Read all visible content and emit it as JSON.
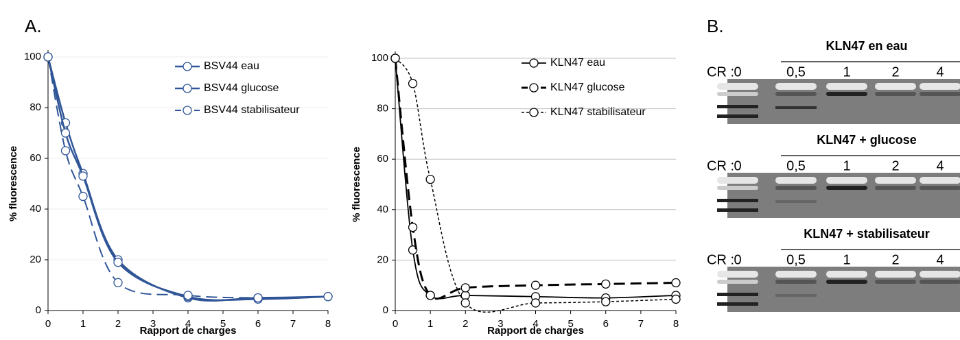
{
  "panels": {
    "a": "A.",
    "b": "B."
  },
  "chart_data": [
    {
      "type": "line",
      "x_label": "Rapport de charges",
      "y_label": "% fluorescence",
      "x": [
        0,
        0.5,
        1,
        2,
        4,
        6,
        8
      ],
      "xlim": [
        0,
        8
      ],
      "xticks": [
        0,
        1,
        2,
        3,
        4,
        5,
        6,
        7,
        8
      ],
      "ylim": [
        0,
        100
      ],
      "yticks": [
        0,
        20,
        40,
        60,
        80,
        100
      ],
      "grid": true,
      "grid_color": "#eeeeee",
      "legend": "top-right",
      "series": [
        {
          "name": "BSV44 eau",
          "color": "#2f5597",
          "dash": "solid",
          "width": 2.5,
          "values": [
            100,
            74,
            54,
            20,
            5,
            5,
            5.5
          ]
        },
        {
          "name": "BSV44 glucose",
          "color": "#2f5597",
          "dash": "solid",
          "width": 2.5,
          "values": [
            100,
            70,
            53,
            19,
            5.5,
            4.5,
            5.5
          ]
        },
        {
          "name": "BSV44 stabilisateur",
          "color": "#2f5597",
          "dash": "dashed",
          "width": 2,
          "values": [
            100,
            63,
            45,
            11,
            6,
            5,
            5.5
          ]
        }
      ]
    },
    {
      "type": "line",
      "x_label": "Rapport de charges",
      "y_label": "% fluorescence",
      "x": [
        0,
        0.5,
        1,
        2,
        4,
        6,
        8
      ],
      "xlim": [
        0,
        8
      ],
      "xticks": [
        0,
        1,
        2,
        3,
        4,
        5,
        6,
        7,
        8
      ],
      "ylim": [
        0,
        100
      ],
      "yticks": [
        0,
        20,
        40,
        60,
        80,
        100
      ],
      "grid": true,
      "grid_color": "#bfbfbf",
      "legend": "top-right",
      "series": [
        {
          "name": "KLN47 eau",
          "color": "#000000",
          "dash": "solid",
          "width": 1.8,
          "values": [
            100,
            24,
            6,
            6,
            5.5,
            5,
            6
          ]
        },
        {
          "name": "KLN47 glucose",
          "color": "#000000",
          "dash": "dashed",
          "width": 3,
          "values": [
            100,
            33,
            6,
            9,
            10,
            10.5,
            11
          ]
        },
        {
          "name": "KLN47 stabilisateur",
          "color": "#000000",
          "dash": "dotted",
          "width": 1.5,
          "values": [
            100,
            90,
            52,
            3,
            3,
            3.5,
            4.5
          ]
        }
      ]
    }
  ],
  "gels": [
    {
      "title": "KLN47 en eau",
      "cr": "CR :",
      "lanes": [
        "0",
        "0,5",
        "1",
        "2",
        "4"
      ]
    },
    {
      "title": "KLN47 + glucose",
      "cr": "CR :",
      "lanes": [
        "0",
        "0,5",
        "1",
        "2",
        "4"
      ]
    },
    {
      "title": "KLN47 + stabilisateur",
      "cr": "CR :",
      "lanes": [
        "0",
        "0,5",
        "1",
        "2",
        "4"
      ]
    }
  ]
}
